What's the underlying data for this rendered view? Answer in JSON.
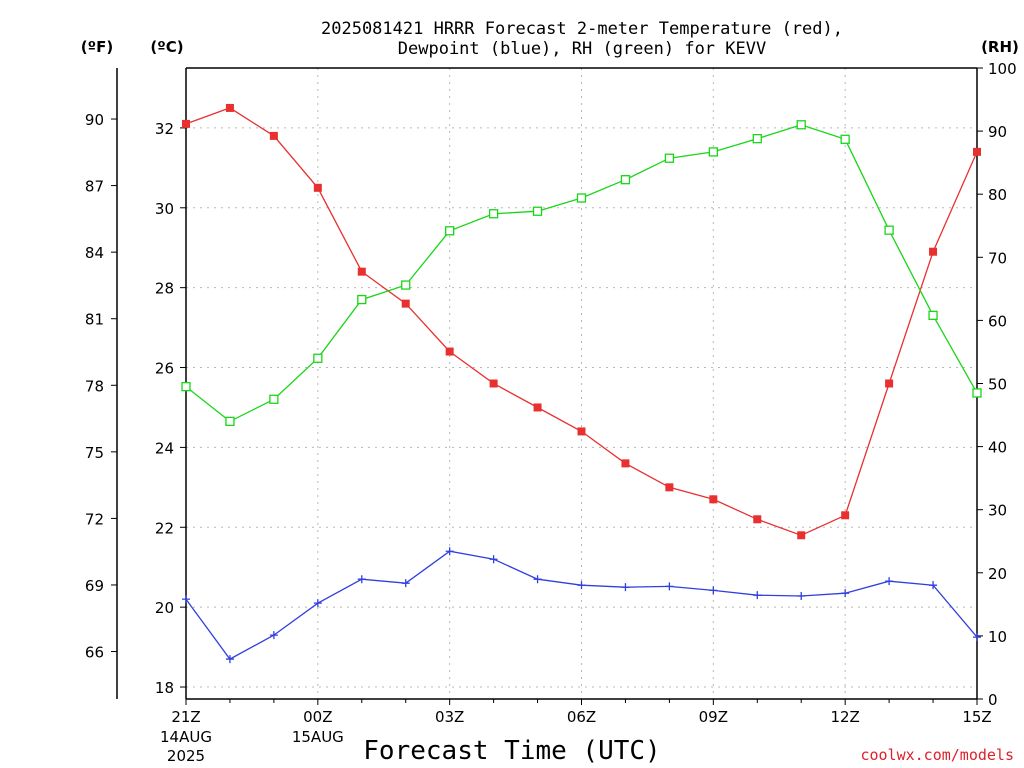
{
  "title_line1": "2025081421 HRRR Forecast 2-meter Temperature (red),",
  "title_line2": "Dewpoint (blue), RH (green) for KEVV",
  "units": {
    "fahrenheit": "(ºF)",
    "celsius": "(ºC)",
    "rh": "(RH)"
  },
  "xlabel": "Forecast Time (UTC)",
  "credit": "coolwx.com/models",
  "colors": {
    "temperature": "#e83030",
    "dewpoint": "#2f3fe0",
    "rh": "#19d619",
    "grid": "#b8b8b8",
    "credit": "#e0202a"
  },
  "chart_data": {
    "type": "line",
    "x": [
      0,
      1,
      2,
      3,
      4,
      5,
      6,
      7,
      8,
      9,
      10,
      11,
      12,
      13,
      14,
      15,
      16,
      17,
      18
    ],
    "x_ticks": [
      {
        "x": 0,
        "label": "21Z",
        "sub1": "14AUG",
        "sub2": "2025"
      },
      {
        "x": 3,
        "label": "00Z",
        "sub1": "15AUG",
        "sub2": ""
      },
      {
        "x": 6,
        "label": "03Z",
        "sub1": "",
        "sub2": ""
      },
      {
        "x": 9,
        "label": "06Z",
        "sub1": "",
        "sub2": ""
      },
      {
        "x": 12,
        "label": "09Z",
        "sub1": "",
        "sub2": ""
      },
      {
        "x": 15,
        "label": "12Z",
        "sub1": "",
        "sub2": ""
      },
      {
        "x": 18,
        "label": "15Z",
        "sub1": "",
        "sub2": ""
      }
    ],
    "xlim": [
      0,
      18
    ],
    "celsius_axis": {
      "ylim": [
        17.7,
        33.5
      ],
      "ticks": [
        18,
        20,
        22,
        24,
        26,
        28,
        30,
        32
      ]
    },
    "fahrenheit_axis": {
      "ticks": [
        66,
        69,
        72,
        75,
        78,
        81,
        84,
        87,
        90
      ]
    },
    "rh_axis": {
      "ylim": [
        0,
        100
      ],
      "ticks": [
        0,
        10,
        20,
        30,
        40,
        50,
        60,
        70,
        80,
        90,
        100
      ]
    },
    "grid": true,
    "series": [
      {
        "key": "temperature",
        "axis": "celsius",
        "values": [
          32.1,
          32.5,
          31.8,
          30.5,
          28.4,
          27.6,
          26.4,
          25.6,
          25.0,
          24.4,
          23.6,
          23.0,
          22.7,
          22.2,
          21.8,
          22.3,
          25.6,
          28.9,
          31.4
        ]
      },
      {
        "key": "dewpoint",
        "axis": "celsius",
        "values": [
          20.2,
          18.7,
          19.3,
          20.1,
          20.7,
          20.6,
          21.4,
          21.2,
          20.7,
          20.55,
          20.5,
          20.52,
          20.42,
          20.3,
          20.28,
          20.35,
          20.65,
          20.55,
          19.25
        ]
      },
      {
        "key": "rh",
        "axis": "rh",
        "values": [
          49.5,
          44.0,
          47.5,
          54.0,
          63.3,
          65.6,
          74.2,
          76.9,
          77.3,
          79.4,
          82.3,
          85.7,
          86.7,
          88.8,
          91.0,
          88.7,
          74.3,
          60.8,
          48.5
        ]
      }
    ]
  }
}
